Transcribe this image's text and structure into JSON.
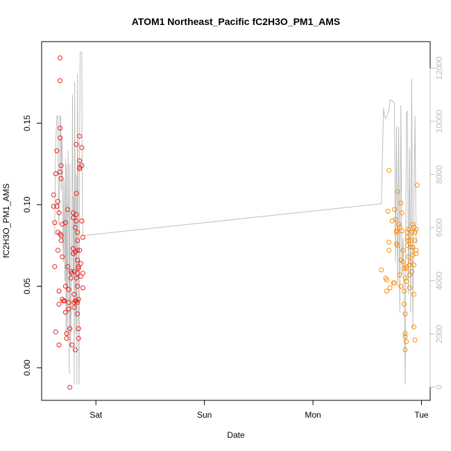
{
  "chart_data": {
    "type": "scatter",
    "title": "ATOM1 Northeast_Pacific fC2H3O_PM1_AMS",
    "xlabel": "Date",
    "ylabel": "fC2H3O_PM1_AMS",
    "x_ticks": [
      "Sat",
      "Sun",
      "Mon",
      "Tue"
    ],
    "x_range_days": [
      -0.5,
      3.08
    ],
    "y_left": {
      "range": [
        -0.02,
        0.2
      ],
      "ticks": [
        0.0,
        0.05,
        0.1,
        0.15
      ],
      "tick_labels": [
        "0.00",
        "0.05",
        "0.10",
        "0.15"
      ]
    },
    "y_right": {
      "range": [
        -500,
        13000
      ],
      "ticks": [
        0,
        2000,
        4000,
        6000,
        8000,
        10000,
        12000
      ],
      "tick_labels": [
        "0",
        "2000",
        "4000",
        "6000",
        "8000",
        "10000",
        "12000"
      ],
      "color": "#bdbdbd"
    },
    "series": [
      {
        "color": "#e8201a",
        "points": [
          [
            -0.39,
            0.106
          ],
          [
            -0.39,
            0.099
          ],
          [
            -0.38,
            0.089
          ],
          [
            -0.38,
            0.062
          ],
          [
            -0.37,
            0.022
          ],
          [
            -0.37,
            0.119
          ],
          [
            -0.36,
            0.133
          ],
          [
            -0.36,
            0.099
          ],
          [
            -0.35,
            0.102
          ],
          [
            -0.35,
            0.083
          ],
          [
            -0.35,
            0.072
          ],
          [
            -0.34,
            0.047
          ],
          [
            -0.34,
            0.039
          ],
          [
            -0.34,
            0.014
          ],
          [
            -0.33,
            0.19
          ],
          [
            -0.33,
            0.176
          ],
          [
            -0.33,
            0.147
          ],
          [
            -0.33,
            0.141
          ],
          [
            -0.32,
            0.124
          ],
          [
            -0.33,
            0.12
          ],
          [
            -0.32,
            0.116
          ],
          [
            -0.34,
            0.095
          ],
          [
            -0.33,
            0.082
          ],
          [
            -0.32,
            0.081
          ],
          [
            -0.32,
            0.078
          ],
          [
            -0.31,
            0.088
          ],
          [
            -0.31,
            0.068
          ],
          [
            -0.31,
            0.042
          ],
          [
            -0.3,
            0.041
          ],
          [
            -0.29,
            0.041
          ],
          [
            -0.28,
            0.089
          ],
          [
            -0.28,
            0.05
          ],
          [
            -0.28,
            0.034
          ],
          [
            -0.27,
            0.021
          ],
          [
            -0.27,
            0.018
          ],
          [
            -0.26,
            0.097
          ],
          [
            -0.26,
            0.062
          ],
          [
            -0.25,
            0.048
          ],
          [
            -0.25,
            0.04
          ],
          [
            -0.25,
            0.036
          ],
          [
            -0.24,
            0.024
          ],
          [
            -0.24,
            -0.012
          ],
          [
            -0.23,
            0.059
          ],
          [
            -0.23,
            0.055
          ],
          [
            -0.22,
            0.014
          ],
          [
            -0.22,
            0.058
          ],
          [
            -0.21,
            0.095
          ],
          [
            -0.21,
            0.092
          ],
          [
            -0.21,
            0.073
          ],
          [
            -0.21,
            0.07
          ],
          [
            -0.2,
            0.059
          ],
          [
            -0.2,
            0.045
          ],
          [
            -0.2,
            0.04
          ],
          [
            -0.2,
            0.037
          ],
          [
            -0.19,
            0.086
          ],
          [
            -0.19,
            0.071
          ],
          [
            -0.19,
            0.041
          ],
          [
            -0.19,
            0.011
          ],
          [
            -0.18,
            0.137
          ],
          [
            -0.18,
            0.107
          ],
          [
            -0.18,
            0.094
          ],
          [
            -0.18,
            0.09
          ],
          [
            -0.18,
            0.055
          ],
          [
            -0.18,
            0.041
          ],
          [
            -0.17,
            0.083
          ],
          [
            -0.17,
            0.078
          ],
          [
            -0.17,
            0.072
          ],
          [
            -0.17,
            0.066
          ],
          [
            -0.17,
            0.058
          ],
          [
            -0.17,
            0.05
          ],
          [
            -0.17,
            0.04
          ],
          [
            -0.17,
            0.033
          ],
          [
            -0.16,
            0.024
          ],
          [
            -0.16,
            0.018
          ],
          [
            -0.16,
            0.061
          ],
          [
            -0.16,
            0.042
          ],
          [
            -0.15,
            0.142
          ],
          [
            -0.15,
            0.127
          ],
          [
            -0.15,
            0.123
          ],
          [
            -0.15,
            0.122
          ],
          [
            -0.15,
            0.072
          ],
          [
            -0.14,
            0.056
          ],
          [
            -0.13,
            0.135
          ],
          [
            -0.13,
            0.124
          ],
          [
            -0.13,
            0.09
          ],
          [
            -0.12,
            0.08
          ],
          [
            -0.12,
            0.058
          ],
          [
            -0.12,
            0.049
          ],
          [
            -0.16,
            0.062
          ],
          [
            -0.14,
            0.064
          ]
        ]
      },
      {
        "color": "#ff8c00",
        "points": [
          [
            2.63,
            0.06
          ],
          [
            2.67,
            0.055
          ],
          [
            2.68,
            0.054
          ],
          [
            2.68,
            0.047
          ],
          [
            2.69,
            0.096
          ],
          [
            2.7,
            0.077
          ],
          [
            2.7,
            0.072
          ],
          [
            2.71,
            0.049
          ],
          [
            2.7,
            0.121
          ],
          [
            2.73,
            0.09
          ],
          [
            2.74,
            0.052
          ],
          [
            2.75,
            0.097
          ],
          [
            2.75,
            0.052
          ],
          [
            2.76,
            0.091
          ],
          [
            2.77,
            0.083
          ],
          [
            2.77,
            0.076
          ],
          [
            2.77,
            0.084
          ],
          [
            2.78,
            0.108
          ],
          [
            2.78,
            0.075
          ],
          [
            2.79,
            0.088
          ],
          [
            2.8,
            0.086
          ],
          [
            2.8,
            0.057
          ],
          [
            2.81,
            0.066
          ],
          [
            2.81,
            0.05
          ],
          [
            2.81,
            0.101
          ],
          [
            2.82,
            0.095
          ],
          [
            2.82,
            0.084
          ],
          [
            2.83,
            0.072
          ],
          [
            2.83,
            0.065
          ],
          [
            2.84,
            0.047
          ],
          [
            2.84,
            0.039
          ],
          [
            2.85,
            0.033
          ],
          [
            2.85,
            0.021
          ],
          [
            2.85,
            0.019
          ],
          [
            2.85,
            0.011
          ],
          [
            2.86,
            0.061
          ],
          [
            2.86,
            0.053
          ],
          [
            2.86,
            0.016
          ],
          [
            2.87,
            0.083
          ],
          [
            2.87,
            0.075
          ],
          [
            2.88,
            0.085
          ],
          [
            2.88,
            0.078
          ],
          [
            2.88,
            0.068
          ],
          [
            2.89,
            0.063
          ],
          [
            2.89,
            0.057
          ],
          [
            2.89,
            0.049
          ],
          [
            2.9,
            0.078
          ],
          [
            2.9,
            0.074
          ],
          [
            2.9,
            0.065
          ],
          [
            2.91,
            0.083
          ],
          [
            2.92,
            0.088
          ],
          [
            2.92,
            0.074
          ],
          [
            2.92,
            0.069
          ],
          [
            2.93,
            0.086
          ],
          [
            2.93,
            0.063
          ],
          [
            2.93,
            0.045
          ],
          [
            2.93,
            0.025
          ],
          [
            2.94,
            0.083
          ],
          [
            2.94,
            0.017
          ],
          [
            2.94,
            0.078
          ],
          [
            2.95,
            0.072
          ],
          [
            2.95,
            0.085
          ],
          [
            2.96,
            0.112
          ],
          [
            2.95,
            0.07
          ],
          [
            2.86,
            0.062
          ],
          [
            2.87,
            0.08
          ],
          [
            2.91,
            0.059
          ],
          [
            2.84,
            0.061
          ],
          [
            2.88,
            0.078
          ],
          [
            2.85,
            0.055
          ]
        ]
      },
      {
        "color": "#bdbdbd",
        "axis": "right",
        "line": [
          [
            -0.38,
            5700
          ],
          [
            -0.37,
            9200
          ],
          [
            -0.36,
            10200
          ],
          [
            -0.35,
            10200
          ],
          [
            -0.345,
            7000
          ],
          [
            -0.34,
            6100
          ],
          [
            -0.33,
            10200
          ],
          [
            -0.325,
            10200
          ],
          [
            -0.32,
            7400
          ],
          [
            -0.315,
            9500
          ],
          [
            -0.31,
            9000
          ],
          [
            -0.305,
            5500
          ],
          [
            -0.3,
            4700
          ],
          [
            -0.295,
            7800
          ],
          [
            -0.29,
            6000
          ],
          [
            -0.285,
            4000
          ],
          [
            -0.28,
            8600
          ],
          [
            -0.275,
            2000
          ],
          [
            -0.27,
            8400
          ],
          [
            -0.265,
            1800
          ],
          [
            -0.26,
            4500
          ],
          [
            -0.255,
            8900
          ],
          [
            -0.25,
            5800
          ],
          [
            -0.245,
            500
          ],
          [
            -0.24,
            8400
          ],
          [
            -0.235,
            1500
          ],
          [
            -0.225,
            3500
          ],
          [
            -0.215,
            11000
          ],
          [
            -0.21,
            4300
          ],
          [
            -0.205,
            7200
          ],
          [
            -0.2,
            100
          ],
          [
            -0.195,
            11500
          ],
          [
            -0.19,
            6000
          ],
          [
            -0.185,
            2000
          ],
          [
            -0.18,
            8000
          ],
          [
            -0.175,
            100
          ],
          [
            -0.17,
            11800
          ],
          [
            -0.165,
            8000
          ],
          [
            -0.16,
            3000
          ],
          [
            -0.155,
            100
          ],
          [
            -0.15,
            9000
          ],
          [
            -0.145,
            12600
          ],
          [
            -0.13,
            12600
          ],
          [
            -0.125,
            6600
          ],
          [
            -0.12,
            5700
          ],
          [
            2.63,
            6900
          ],
          [
            2.64,
            8700
          ],
          [
            2.65,
            10500
          ],
          [
            2.66,
            10200
          ],
          [
            2.67,
            10100
          ],
          [
            2.69,
            10300
          ],
          [
            2.7,
            10400
          ],
          [
            2.71,
            10800
          ],
          [
            2.72,
            10800
          ],
          [
            2.75,
            10700
          ],
          [
            2.76,
            4700
          ],
          [
            2.77,
            9800
          ],
          [
            2.78,
            3800
          ],
          [
            2.79,
            9800
          ],
          [
            2.8,
            2800
          ],
          [
            2.81,
            10600
          ],
          [
            2.82,
            4200
          ],
          [
            2.83,
            5600
          ],
          [
            2.84,
            3500
          ],
          [
            2.85,
            100
          ],
          [
            2.86,
            10300
          ],
          [
            2.87,
            10400
          ],
          [
            2.88,
            3500
          ],
          [
            2.89,
            9000
          ],
          [
            2.9,
            2800
          ],
          [
            2.91,
            11600
          ],
          [
            2.92,
            2200
          ],
          [
            2.93,
            7000
          ],
          [
            2.94,
            10200
          ],
          [
            2.95,
            5400
          ]
        ]
      }
    ]
  }
}
